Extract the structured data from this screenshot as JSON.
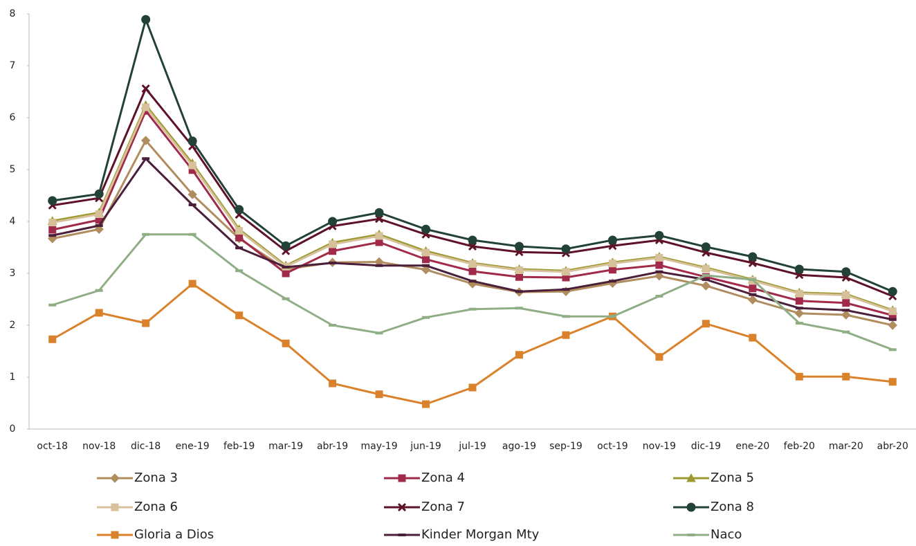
{
  "chart_data": {
    "type": "line",
    "categories": [
      "oct-18",
      "nov-18",
      "dic-18",
      "ene-19",
      "feb-19",
      "mar-19",
      "abr-19",
      "may-19",
      "jun-19",
      "jul-19",
      "ago-19",
      "sep-19",
      "oct-19",
      "nov-19",
      "dic-19",
      "ene-20",
      "feb-20",
      "mar-20",
      "abr-20"
    ],
    "ylim": [
      0,
      8
    ],
    "yticks": [
      0,
      1,
      2,
      3,
      4,
      5,
      6,
      7,
      8
    ],
    "grid": false,
    "legend": "bottom",
    "series": [
      {
        "name": "Zona 3",
        "color": "#b08c5e",
        "marker": "diamond",
        "values": [
          3.67,
          3.85,
          5.56,
          4.52,
          3.67,
          3.08,
          3.21,
          3.22,
          3.07,
          2.8,
          2.64,
          2.65,
          2.81,
          2.95,
          2.76,
          2.49,
          2.23,
          2.2,
          2.0
        ]
      },
      {
        "name": "Zona 4",
        "color": "#a12a4b",
        "marker": "square",
        "values": [
          3.84,
          4.03,
          6.13,
          4.99,
          3.69,
          3.0,
          3.43,
          3.6,
          3.27,
          3.04,
          2.93,
          2.92,
          3.07,
          3.16,
          2.93,
          2.71,
          2.47,
          2.43,
          2.19
        ]
      },
      {
        "name": "Zona 5",
        "color": "#9c9a2e",
        "marker": "triangle",
        "values": [
          4.01,
          4.17,
          6.24,
          5.12,
          3.85,
          3.15,
          3.59,
          3.75,
          3.43,
          3.2,
          3.08,
          3.05,
          3.21,
          3.32,
          3.11,
          2.88,
          2.63,
          2.6,
          2.29
        ]
      },
      {
        "name": "Zona 6",
        "color": "#d6c19a",
        "marker": "square",
        "values": [
          3.98,
          4.14,
          6.2,
          5.08,
          3.82,
          3.13,
          3.56,
          3.72,
          3.4,
          3.18,
          3.06,
          3.03,
          3.19,
          3.3,
          3.09,
          2.86,
          2.61,
          2.58,
          2.27
        ]
      },
      {
        "name": "Zona 7",
        "color": "#5e1127",
        "marker": "x",
        "values": [
          4.31,
          4.45,
          6.56,
          5.45,
          4.13,
          3.43,
          3.91,
          4.05,
          3.75,
          3.52,
          3.41,
          3.39,
          3.53,
          3.64,
          3.4,
          3.2,
          2.97,
          2.92,
          2.56
        ]
      },
      {
        "name": "Zona 8",
        "color": "#234236",
        "marker": "circle",
        "values": [
          4.4,
          4.53,
          7.89,
          5.55,
          4.23,
          3.53,
          4.0,
          4.17,
          3.85,
          3.64,
          3.52,
          3.47,
          3.64,
          3.73,
          3.51,
          3.32,
          3.08,
          3.03,
          2.65
        ]
      },
      {
        "name": "Gloria a Dios",
        "color": "#d9822b",
        "marker": "square",
        "values": [
          1.73,
          2.24,
          2.04,
          2.8,
          2.19,
          1.65,
          0.88,
          0.67,
          0.48,
          0.8,
          1.43,
          1.81,
          2.17,
          1.39,
          2.03,
          1.76,
          1.01,
          1.01,
          0.91
        ]
      },
      {
        "name": "Kinder Morgan Mty",
        "color": "#4a1f3a",
        "marker": "dash",
        "values": [
          3.73,
          3.92,
          5.21,
          4.32,
          3.49,
          3.12,
          3.2,
          3.15,
          3.15,
          2.85,
          2.65,
          2.69,
          2.85,
          3.03,
          2.88,
          2.59,
          2.33,
          2.29,
          2.11
        ]
      },
      {
        "name": "Naco",
        "color": "#8fae86",
        "marker": "dash",
        "values": [
          2.39,
          2.67,
          3.75,
          3.75,
          3.05,
          2.51,
          2.0,
          1.85,
          2.15,
          2.31,
          2.33,
          2.17,
          2.17,
          2.56,
          2.96,
          2.88,
          2.04,
          1.87,
          1.53
        ]
      }
    ]
  }
}
